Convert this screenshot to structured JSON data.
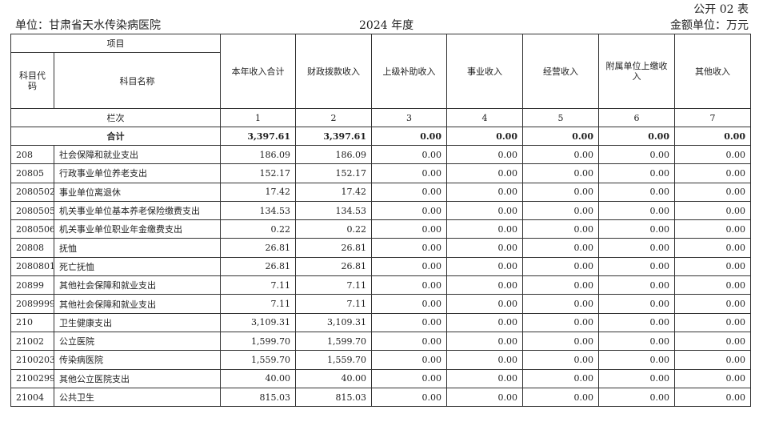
{
  "header": {
    "form_no": "公开 02 表",
    "unit": "单位：甘肃省天水传染病医院",
    "year": "2024 年度",
    "money_unit": "金额单位：万元"
  },
  "table": {
    "item_header": "项目",
    "code_header": "科目代码",
    "name_header": "科目名称",
    "columns": [
      "本年收入合计",
      "财政拨款收入",
      "上级补助收入",
      "事业收入",
      "经营收入",
      "附属单位上缴收入",
      "其他收入"
    ],
    "column_index_label": "栏次",
    "column_indexes": [
      "1",
      "2",
      "3",
      "4",
      "5",
      "6",
      "7"
    ],
    "total_label": "合计",
    "total_values": [
      "3,397.61",
      "3,397.61",
      "0.00",
      "0.00",
      "0.00",
      "0.00",
      "0.00"
    ],
    "rows": [
      {
        "code": "208",
        "name": "社会保障和就业支出",
        "values": [
          "186.09",
          "186.09",
          "0.00",
          "0.00",
          "0.00",
          "0.00",
          "0.00"
        ]
      },
      {
        "code": "20805",
        "name": "行政事业单位养老支出",
        "values": [
          "152.17",
          "152.17",
          "0.00",
          "0.00",
          "0.00",
          "0.00",
          "0.00"
        ]
      },
      {
        "code": "2080502",
        "name": "事业单位离退休",
        "values": [
          "17.42",
          "17.42",
          "0.00",
          "0.00",
          "0.00",
          "0.00",
          "0.00"
        ]
      },
      {
        "code": "2080505",
        "name": "机关事业单位基本养老保险缴费支出",
        "values": [
          "134.53",
          "134.53",
          "0.00",
          "0.00",
          "0.00",
          "0.00",
          "0.00"
        ]
      },
      {
        "code": "2080506",
        "name": "机关事业单位职业年金缴费支出",
        "values": [
          "0.22",
          "0.22",
          "0.00",
          "0.00",
          "0.00",
          "0.00",
          "0.00"
        ]
      },
      {
        "code": "20808",
        "name": "抚恤",
        "values": [
          "26.81",
          "26.81",
          "0.00",
          "0.00",
          "0.00",
          "0.00",
          "0.00"
        ]
      },
      {
        "code": "2080801",
        "name": "死亡抚恤",
        "values": [
          "26.81",
          "26.81",
          "0.00",
          "0.00",
          "0.00",
          "0.00",
          "0.00"
        ]
      },
      {
        "code": "20899",
        "name": "其他社会保障和就业支出",
        "values": [
          "7.11",
          "7.11",
          "0.00",
          "0.00",
          "0.00",
          "0.00",
          "0.00"
        ]
      },
      {
        "code": "2089999",
        "name": "其他社会保障和就业支出",
        "values": [
          "7.11",
          "7.11",
          "0.00",
          "0.00",
          "0.00",
          "0.00",
          "0.00"
        ]
      },
      {
        "code": "210",
        "name": "卫生健康支出",
        "values": [
          "3,109.31",
          "3,109.31",
          "0.00",
          "0.00",
          "0.00",
          "0.00",
          "0.00"
        ]
      },
      {
        "code": "21002",
        "name": "公立医院",
        "values": [
          "1,599.70",
          "1,599.70",
          "0.00",
          "0.00",
          "0.00",
          "0.00",
          "0.00"
        ]
      },
      {
        "code": "2100203",
        "name": "传染病医院",
        "values": [
          "1,559.70",
          "1,559.70",
          "0.00",
          "0.00",
          "0.00",
          "0.00",
          "0.00"
        ]
      },
      {
        "code": "2100299",
        "name": "其他公立医院支出",
        "values": [
          "40.00",
          "40.00",
          "0.00",
          "0.00",
          "0.00",
          "0.00",
          "0.00"
        ]
      },
      {
        "code": "21004",
        "name": "公共卫生",
        "values": [
          "815.03",
          "815.03",
          "0.00",
          "0.00",
          "0.00",
          "0.00",
          "0.00"
        ]
      }
    ]
  }
}
